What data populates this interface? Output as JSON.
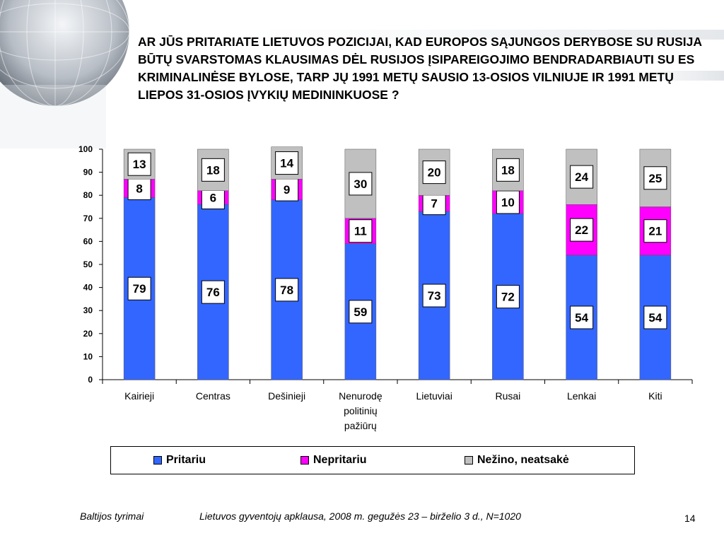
{
  "title": "AR JŪS PRITARIATE LIETUVOS POZICIJAI, KAD EUROPOS SĄJUNGOS DERYBOSE SU RUSIJA BŪTŲ SVARSTOMAS KLAUSIMAS DĖL RUSIJOS ĮSIPAREIGOJIMO BENDRADARBIAUTI SU ES KRIMINALINĖSE BYLOSE, TARP JŲ 1991 METŲ SAUSIO 13-OSIOS VILNIUJE IR 1991 METŲ LIEPOS 31-OSIOS ĮVYKIŲ MEDININKUOSE ?",
  "chart_data": {
    "type": "bar",
    "stacked": true,
    "categories": [
      [
        "Kairieji"
      ],
      [
        "Centras"
      ],
      [
        "Dešinieji"
      ],
      [
        "Nenurodę",
        "politinių",
        "pažiūrų"
      ],
      [
        "Lietuviai"
      ],
      [
        "Rusai"
      ],
      [
        "Lenkai"
      ],
      [
        "Kiti"
      ]
    ],
    "series": [
      {
        "name": "Pritariu",
        "color": "#3366ff",
        "values": [
          79,
          76,
          78,
          59,
          73,
          72,
          54,
          54
        ]
      },
      {
        "name": "Nepritariu",
        "color": "#ff00ff",
        "values": [
          8,
          6,
          9,
          11,
          7,
          10,
          22,
          21
        ]
      },
      {
        "name": "Nežino, neatsakė",
        "color": "#c0c0c0",
        "values": [
          13,
          18,
          14,
          30,
          20,
          18,
          24,
          25
        ]
      }
    ],
    "ylim": [
      0,
      100
    ],
    "yticks": [
      0,
      10,
      20,
      30,
      40,
      50,
      60,
      70,
      80,
      90,
      100
    ],
    "legend_position": "bottom",
    "grid": false
  },
  "footer": {
    "source": "Baltijos tyrimai",
    "survey": "Lietuvos gyventojų apklausa, 2008 m. gegužės 23 – birželio 3 d., N=1020",
    "page": "14"
  }
}
